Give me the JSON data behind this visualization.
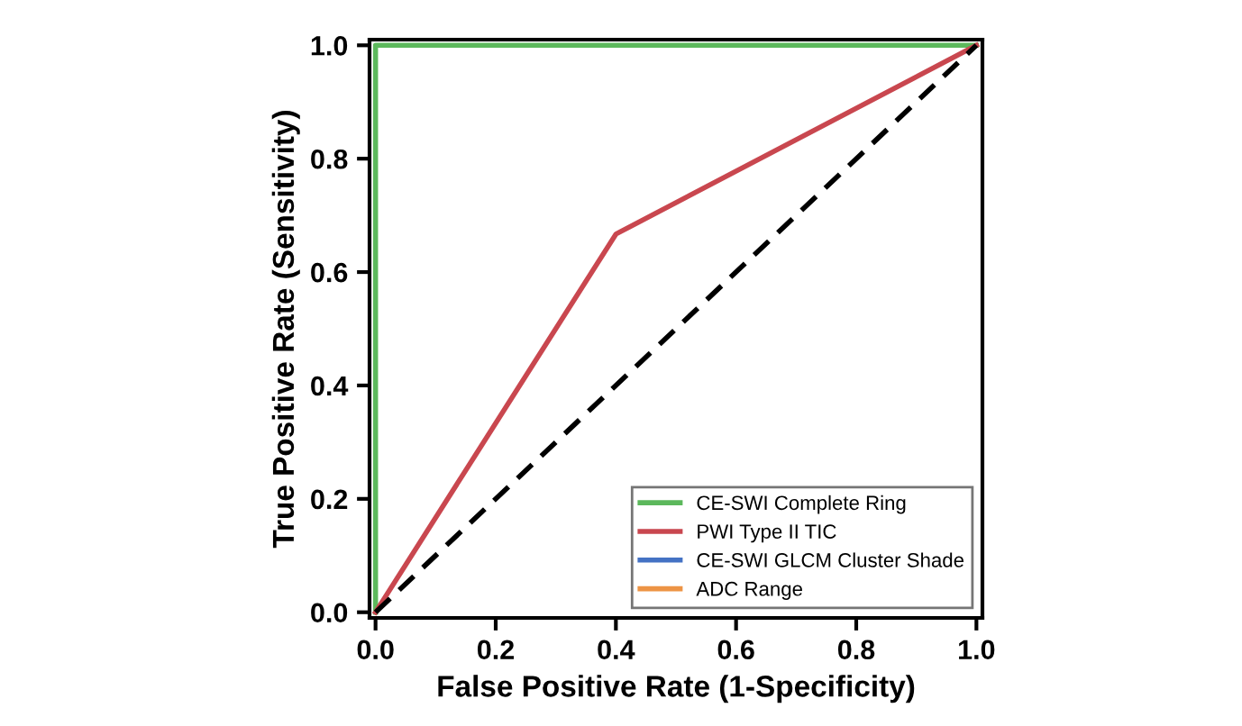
{
  "chart_data": {
    "type": "line",
    "xlabel": "False Positive Rate (1-Specificity)",
    "ylabel": "True Positive Rate (Sensitivity)",
    "xlim": [
      -0.01,
      1.01
    ],
    "ylim": [
      -0.01,
      1.01
    ],
    "xticks": [
      {
        "value": 0,
        "label": "0.0"
      },
      0.2,
      0.4,
      0.6,
      0.8,
      {
        "value": 1,
        "label": "1.0"
      }
    ],
    "yticks": [
      {
        "value": 0,
        "label": "0.0"
      },
      0.2,
      0.4,
      0.6,
      0.8,
      {
        "value": 1,
        "label": "1.0"
      }
    ],
    "grid": false,
    "legend": "bottom right",
    "line_style": "solid",
    "series": [
      {
        "name": "CE-SWI Complete Ring",
        "color": "#5cb85c",
        "x": [
          0,
          0,
          1
        ],
        "values": [
          0,
          1,
          1
        ]
      },
      {
        "name": "PWI Type II TIC",
        "color": "#c9474f",
        "x": [
          0,
          0.4,
          1
        ],
        "values": [
          0,
          0.667,
          1
        ]
      },
      {
        "name": "CE-SWI GLCM Cluster Shade",
        "color": "#4472c4"
      },
      {
        "name": "ADC Range",
        "color": "#ed9445"
      },
      {
        "color": "#000000",
        "x": [
          0,
          1
        ],
        "values": [
          0,
          1
        ],
        "line_style": "dashed"
      }
    ]
  }
}
